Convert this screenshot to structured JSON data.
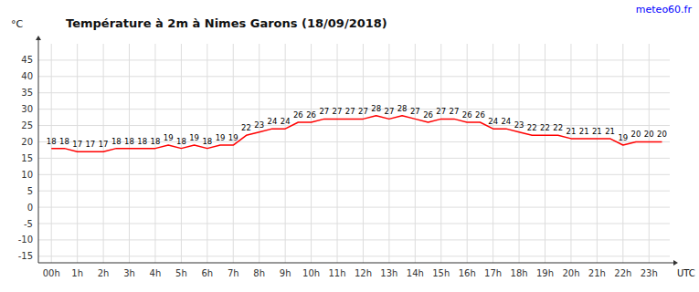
{
  "chart_data": {
    "type": "line",
    "title": "Température à 2m à Nimes Garons (18/09/2018)",
    "ylabel": "°C",
    "xlabel": "UTC",
    "annotations": [
      "meteo60.fr"
    ],
    "x": [
      0,
      0.5,
      1,
      1.5,
      2,
      2.5,
      3,
      3.5,
      4,
      4.5,
      5,
      5.5,
      6,
      6.5,
      7,
      7.5,
      8,
      8.5,
      9,
      9.5,
      10,
      10.5,
      11,
      11.5,
      12,
      12.5,
      13,
      13.5,
      14,
      14.5,
      15,
      15.5,
      16,
      16.5,
      17,
      17.5,
      18,
      18.5,
      19,
      19.5,
      20,
      20.5,
      21,
      21.5,
      22,
      22.5,
      23,
      23.5
    ],
    "series": [
      {
        "color": "#ff0000",
        "values": [
          18,
          18,
          17,
          17,
          17,
          18,
          18,
          18,
          18,
          19,
          18,
          19,
          18,
          19,
          19,
          22,
          23,
          24,
          24,
          26,
          26,
          27,
          27,
          27,
          27,
          28,
          27,
          28,
          27,
          26,
          27,
          27,
          26,
          26,
          24,
          24,
          23,
          22,
          22,
          22,
          21,
          21,
          21,
          21,
          19,
          20,
          20,
          20
        ]
      }
    ],
    "xlim": [
      -0.5,
      23.8
    ],
    "xticks": [
      {
        "value": 0,
        "label": "00h"
      },
      {
        "value": 1,
        "label": "1h"
      },
      {
        "value": 2,
        "label": "2h"
      },
      {
        "value": 3,
        "label": "3h"
      },
      {
        "value": 4,
        "label": "4h"
      },
      {
        "value": 5,
        "label": "5h"
      },
      {
        "value": 6,
        "label": "6h"
      },
      {
        "value": 7,
        "label": "7h"
      },
      {
        "value": 8,
        "label": "8h"
      },
      {
        "value": 9,
        "label": "9h"
      },
      {
        "value": 10,
        "label": "10h"
      },
      {
        "value": 11,
        "label": "11h"
      },
      {
        "value": 12,
        "label": "12h"
      },
      {
        "value": 13,
        "label": "13h"
      },
      {
        "value": 14,
        "label": "14h"
      },
      {
        "value": 15,
        "label": "15h"
      },
      {
        "value": 16,
        "label": "16h"
      },
      {
        "value": 17,
        "label": "17h"
      },
      {
        "value": 18,
        "label": "18h"
      },
      {
        "value": 19,
        "label": "19h"
      },
      {
        "value": 20,
        "label": "20h"
      },
      {
        "value": 21,
        "label": "21h"
      },
      {
        "value": 22,
        "label": "22h"
      },
      {
        "value": 23,
        "label": "23h"
      }
    ],
    "ylim": [
      -17,
      50
    ],
    "yticks": [
      -15,
      -10,
      -5,
      0,
      5,
      10,
      15,
      20,
      25,
      30,
      35,
      40,
      45
    ],
    "grid": true,
    "data_labels": true
  }
}
